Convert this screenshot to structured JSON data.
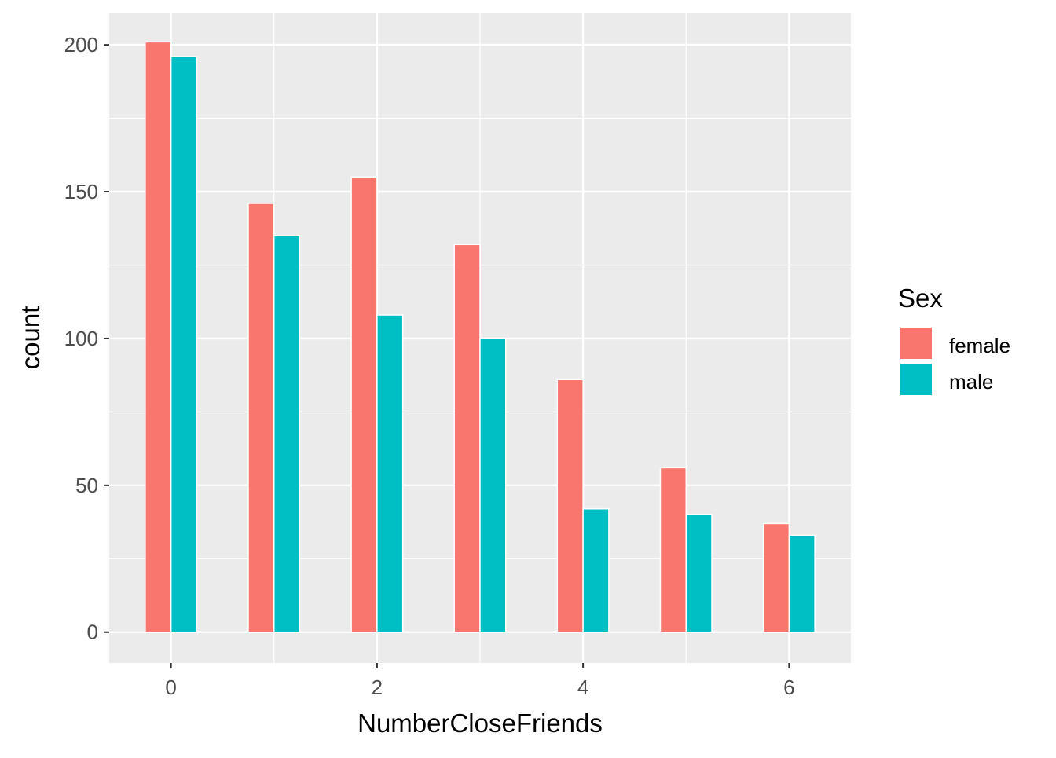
{
  "chart_data": {
    "type": "bar",
    "x": [
      0,
      1,
      2,
      3,
      4,
      5,
      6
    ],
    "x_tick_labels": [
      "0",
      "2",
      "4",
      "6"
    ],
    "x_tick_values": [
      0,
      2,
      4,
      6
    ],
    "y_tick_labels": [
      "0",
      "50",
      "100",
      "150",
      "200"
    ],
    "y_tick_values": [
      0,
      50,
      100,
      150,
      200
    ],
    "xlabel": "NumberCloseFriends",
    "ylabel": "count",
    "xlim": [
      -0.6,
      6.6
    ],
    "ylim": [
      -10.5,
      211
    ],
    "grid": true,
    "legend_title": "Sex",
    "legend_position": "right",
    "series": [
      {
        "name": "female",
        "color": "#F8766D",
        "values": [
          201,
          146,
          155,
          132,
          86,
          56,
          37
        ]
      },
      {
        "name": "male",
        "color": "#00BFC4",
        "values": [
          196,
          135,
          108,
          100,
          42,
          40,
          33
        ]
      }
    ]
  }
}
